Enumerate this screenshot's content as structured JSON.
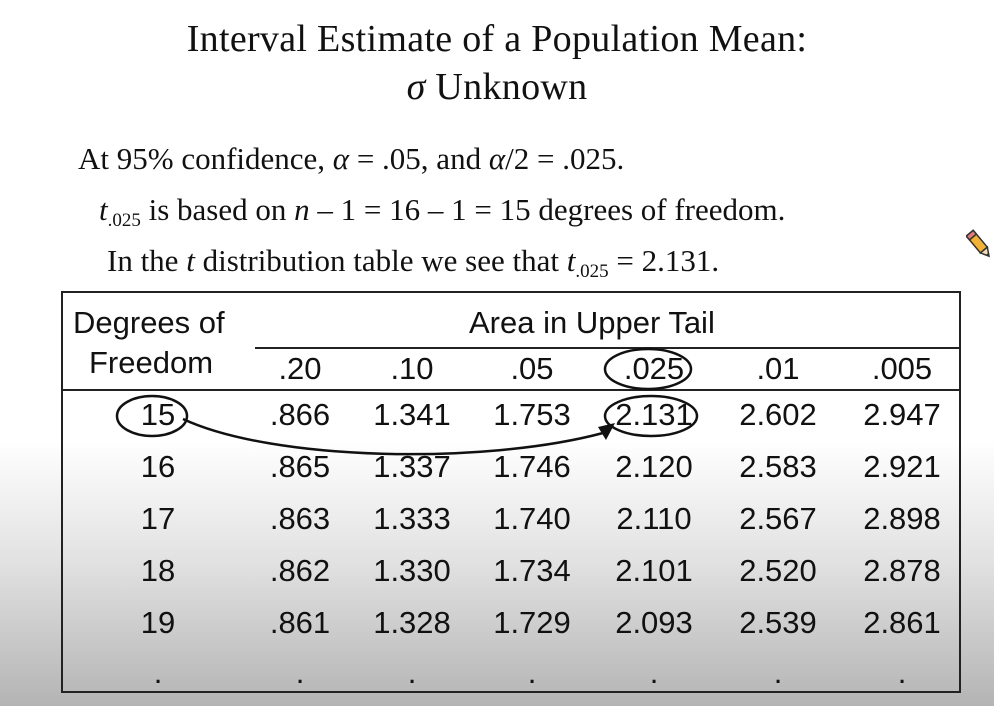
{
  "slide": {
    "title_line1": "Interval Estimate of a Population Mean:",
    "title_sigma": "σ",
    "title_line2": "Unknown",
    "line1": {
      "a": "At 95% confidence, ",
      "alpha1": "α",
      "b": " = .05, and ",
      "alpha2": "α",
      "c": "/2 = .025."
    },
    "line2": {
      "t": "t",
      "sub": ".025",
      "a": " is based on ",
      "n": "n",
      "b": " – 1 = 16 – 1 = 15 degrees of freedom."
    },
    "line3": {
      "a": "In the ",
      "t": "t",
      "b": " distribution table we see that ",
      "t2": "t",
      "sub": ".025",
      "c": " = 2.131."
    }
  },
  "table": {
    "dof_header_line1": "Degrees of",
    "dof_header_line2": "Freedom",
    "area_header": "Area in Upper Tail",
    "columns": [
      ".20",
      ".10",
      ".05",
      ".025",
      ".01",
      ".005"
    ],
    "rows": [
      {
        "dof": "15",
        "values": [
          ".866",
          "1.341",
          "1.753",
          "2.131",
          "2.602",
          "2.947"
        ]
      },
      {
        "dof": "16",
        "values": [
          ".865",
          "1.337",
          "1.746",
          "2.120",
          "2.583",
          "2.921"
        ]
      },
      {
        "dof": "17",
        "values": [
          ".863",
          "1.333",
          "1.740",
          "2.110",
          "2.567",
          "2.898"
        ]
      },
      {
        "dof": "18",
        "values": [
          ".862",
          "1.330",
          "1.734",
          "2.101",
          "2.520",
          "2.878"
        ]
      },
      {
        "dof": "19",
        "values": [
          ".861",
          "1.328",
          "1.729",
          "2.093",
          "2.539",
          "2.861"
        ]
      }
    ],
    "ellipsis": ".",
    "highlight": {
      "row_dof": "15",
      "column": ".025",
      "value": "2.131"
    }
  },
  "icons": {
    "cursor": "pencil-cursor-icon"
  }
}
